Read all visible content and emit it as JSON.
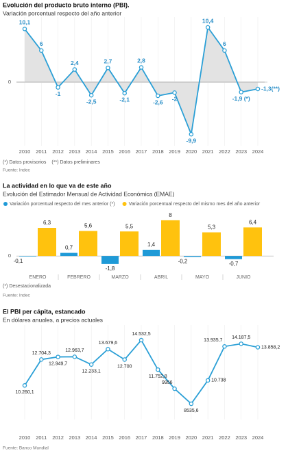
{
  "chart_data": [
    {
      "type": "line",
      "area": true,
      "title": "Evolución del producto bruto interno (PBI).",
      "subtitle": "Variación porcentual respecto del año anterior",
      "categories": [
        "2010",
        "2011",
        "2012",
        "2013",
        "2014",
        "2015",
        "2016",
        "2017",
        "2018",
        "2019",
        "2020",
        "2021",
        "2022",
        "2023",
        "2024"
      ],
      "values": [
        10.1,
        6,
        -1,
        2.4,
        -2.5,
        2.7,
        -2.1,
        2.8,
        -2.6,
        -2,
        -9.9,
        10.4,
        6,
        -1.9,
        -1.3
      ],
      "value_labels": [
        "10,1",
        "6",
        "-1",
        "2,4",
        "-2,5",
        "2,7",
        "-2,1",
        "2,8",
        "-2,6",
        "-2",
        "-9,9",
        "10,4",
        "6",
        "-1,9 (*)",
        "-1,3(**)"
      ],
      "color": "#2a9fd6",
      "area_color": "#e3e3e3",
      "ylim": [
        -11.7,
        11.7
      ],
      "yticks": [
        0
      ],
      "notes": [
        "(*) Datos provisorios",
        "(**) Datos preliminares"
      ],
      "source": "Fuente: Indec"
    },
    {
      "type": "bar",
      "title": "La actividad en lo que va de este año",
      "subtitle": "Evolución del Estimador Mensual de Actividad Económica (EMAE)",
      "categories": [
        "ENERO",
        "FEBRERO",
        "MARZO",
        "ABRIL",
        "MAYO",
        "JUNIO"
      ],
      "series": [
        {
          "name": "Variación porcentual respecto del mes anterior (*)",
          "color": "#1f9ad7",
          "values": [
            -0.1,
            0.7,
            -1.8,
            1.4,
            -0.2,
            -0.7
          ],
          "value_labels": [
            "-0,1",
            "0,7",
            "-1,8",
            "1,4",
            "-0,2",
            "-0,7"
          ]
        },
        {
          "name": "Variación porcentual respecto del mismo mes del año anterior",
          "color": "#ffc20e",
          "values": [
            6.3,
            5.6,
            5.5,
            8,
            5.3,
            6.4
          ],
          "value_labels": [
            "6,3",
            "5,6",
            "5,5",
            "8",
            "5,3",
            "6,4"
          ]
        }
      ],
      "ylim": [
        -3.2,
        8.6
      ],
      "yticks": [
        0
      ],
      "notes": [
        "(*) Desestacionalizada"
      ],
      "source": "Fuente: Indec"
    },
    {
      "type": "line",
      "title": "El PBI per cápita, estancado",
      "subtitle": "En dólares anuales, a precios actuales",
      "categories": [
        "2010",
        "2011",
        "2012",
        "2013",
        "2014",
        "2015",
        "2016",
        "2017",
        "2018",
        "2019",
        "2020",
        "2021",
        "2022",
        "2023",
        "2024"
      ],
      "values": [
        10260.1,
        12704.3,
        12949.7,
        12963.7,
        12233.1,
        13679.6,
        12700,
        14532.5,
        11752.8,
        9956,
        8535.6,
        10738,
        13935.7,
        14187.5,
        13858.2
      ],
      "value_labels": [
        "10.260,1",
        "12.704,3",
        "12.949,7",
        "12.963,7",
        "12.233,1",
        "13.679,6",
        "12.700",
        "14.532,5",
        "11.752,8",
        "9956",
        "8535,6",
        "10.738",
        "13.935,7",
        "14.187,5",
        "13.858,2"
      ],
      "color": "#2a9fd6",
      "ylim": [
        7250,
        15630
      ],
      "source": "Fuente: Banco Mundial"
    }
  ]
}
